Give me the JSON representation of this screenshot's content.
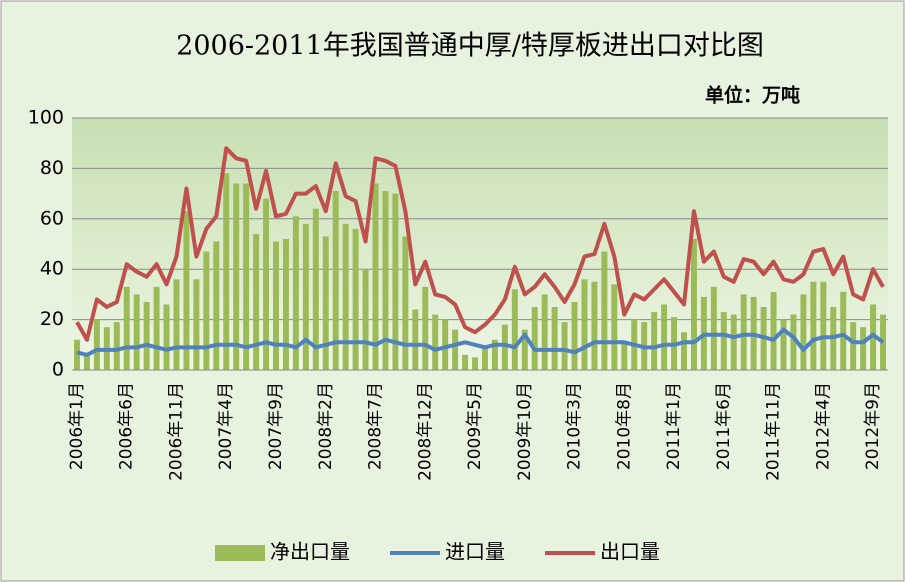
{
  "chart_data": {
    "type": "bar_line",
    "title": "2006-2011年我国普通中厚/特厚板进出口对比图",
    "annotation": "单位：万吨",
    "categories": [
      "2006年1月",
      null,
      null,
      null,
      null,
      "2006年6月",
      null,
      null,
      null,
      null,
      "2006年11月",
      null,
      null,
      null,
      null,
      "2007年4月",
      null,
      null,
      null,
      null,
      "2007年9月",
      null,
      null,
      null,
      null,
      "2008年2月",
      null,
      null,
      null,
      null,
      "2008年7月",
      null,
      null,
      null,
      null,
      "2008年12月",
      null,
      null,
      null,
      null,
      "2009年5月",
      null,
      null,
      null,
      null,
      "2009年10月",
      null,
      null,
      null,
      null,
      "2010年3月",
      null,
      null,
      null,
      null,
      "2010年8月",
      null,
      null,
      null,
      null,
      "2011年1月",
      null,
      null,
      null,
      null,
      "2011年6月",
      null,
      null,
      null,
      null,
      "2011年11月",
      null,
      null,
      null,
      null,
      "2012年4月",
      null,
      null,
      null,
      null,
      "2012年9月",
      null
    ],
    "series": [
      {
        "name": "净出口量",
        "kind": "bar",
        "color": "#9bbb59",
        "values": [
          12,
          6,
          20,
          17,
          19,
          33,
          30,
          27,
          33,
          26,
          36,
          63,
          36,
          47,
          51,
          78,
          74,
          74,
          54,
          68,
          51,
          52,
          61,
          58,
          64,
          53,
          71,
          58,
          56,
          40,
          74,
          71,
          70,
          53,
          24,
          33,
          22,
          20,
          16,
          6,
          5,
          9,
          12,
          18,
          32,
          16,
          25,
          30,
          25,
          19,
          27,
          36,
          35,
          47,
          34,
          11,
          20,
          19,
          23,
          26,
          21,
          15,
          52,
          29,
          33,
          23,
          22,
          30,
          29,
          25,
          31,
          20,
          22,
          30,
          35,
          35,
          25,
          31,
          19,
          17,
          26,
          22
        ]
      },
      {
        "name": "进口量",
        "kind": "line",
        "color": "#4f81bd",
        "values": [
          7,
          6,
          8,
          8,
          8,
          9,
          9,
          10,
          9,
          8,
          9,
          9,
          9,
          9,
          10,
          10,
          10,
          9,
          10,
          11,
          10,
          10,
          9,
          12,
          9,
          10,
          11,
          11,
          11,
          11,
          10,
          12,
          11,
          10,
          10,
          10,
          8,
          9,
          10,
          11,
          10,
          9,
          10,
          10,
          9,
          14,
          8,
          8,
          8,
          8,
          7,
          9,
          11,
          11,
          11,
          11,
          10,
          9,
          9,
          10,
          10,
          11,
          11,
          14,
          14,
          14,
          13,
          14,
          14,
          13,
          12,
          16,
          13,
          8,
          12,
          13,
          13,
          14,
          11,
          11,
          14,
          11
        ]
      },
      {
        "name": "出口量",
        "kind": "line",
        "color": "#c0504d",
        "values": [
          19,
          12,
          28,
          25,
          27,
          42,
          39,
          37,
          42,
          34,
          45,
          72,
          45,
          56,
          61,
          88,
          84,
          83,
          64,
          79,
          61,
          62,
          70,
          70,
          73,
          63,
          82,
          69,
          67,
          51,
          84,
          83,
          81,
          63,
          34,
          43,
          30,
          29,
          26,
          17,
          15,
          18,
          22,
          28,
          41,
          30,
          33,
          38,
          33,
          27,
          34,
          45,
          46,
          58,
          45,
          22,
          30,
          28,
          32,
          36,
          31,
          26,
          63,
          43,
          47,
          37,
          35,
          44,
          43,
          38,
          43,
          36,
          35,
          38,
          47,
          48,
          38,
          45,
          30,
          28,
          40,
          33
        ]
      }
    ],
    "ylim": [
      0,
      100
    ],
    "yticks": [
      0,
      20,
      40,
      60,
      80,
      100
    ],
    "grid": true,
    "legend": "bottom"
  }
}
